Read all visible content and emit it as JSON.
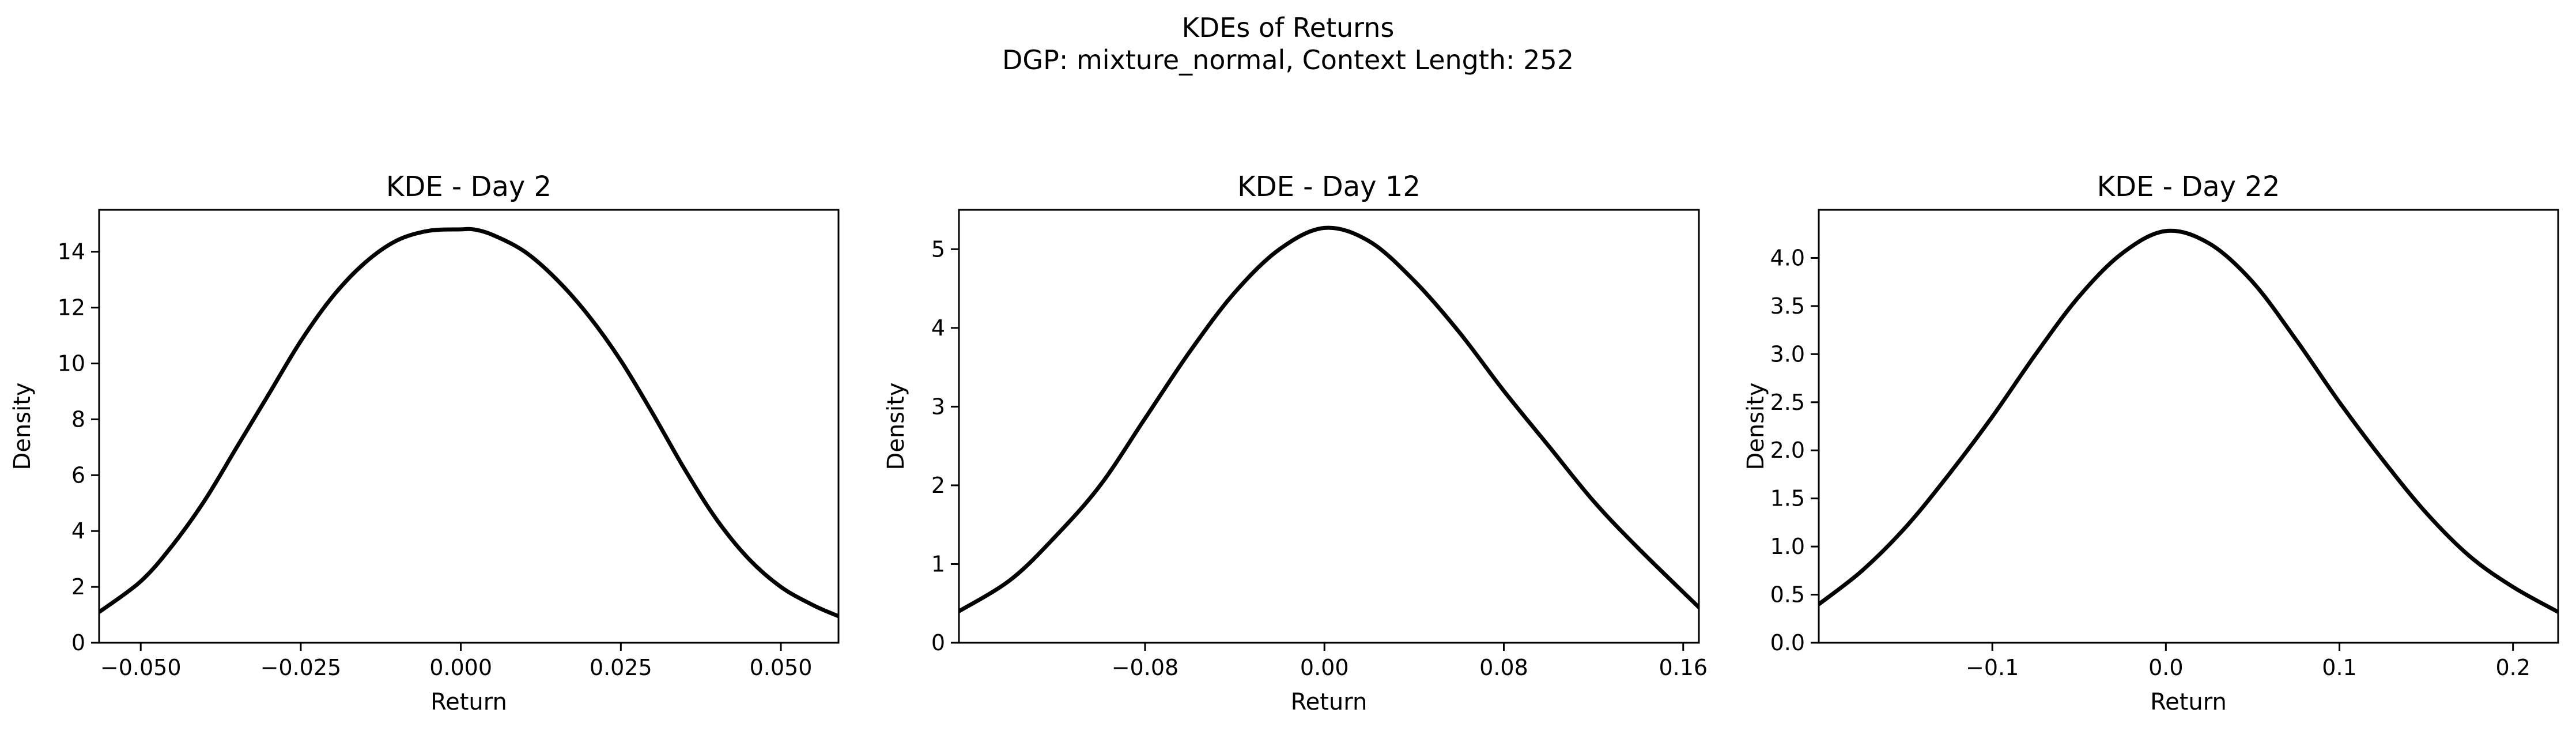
{
  "figure": {
    "title_line1": "KDEs of Returns",
    "title_line2": "DGP: mixture_normal, Context Length: 252"
  },
  "chart_data": [
    {
      "type": "line",
      "title": "KDE - Day 2",
      "xlabel": "Return",
      "ylabel": "Density",
      "xlim": [
        -0.0565,
        0.059
      ],
      "ylim": [
        0,
        15.5
      ],
      "xticks": [
        -0.05,
        -0.025,
        0.0,
        0.025,
        0.05
      ],
      "xtick_labels": [
        "−0.050",
        "−0.025",
        "0.000",
        "0.025",
        "0.050"
      ],
      "yticks": [
        0,
        2,
        4,
        6,
        8,
        10,
        12,
        14
      ],
      "ytick_labels": [
        "0",
        "2",
        "4",
        "6",
        "8",
        "10",
        "12",
        "14"
      ],
      "grid": false,
      "series": [
        {
          "color": "#000000",
          "x": [
            -0.0565,
            -0.05,
            -0.045,
            -0.04,
            -0.035,
            -0.03,
            -0.025,
            -0.02,
            -0.015,
            -0.01,
            -0.005,
            0.0,
            0.002,
            0.005,
            0.01,
            0.015,
            0.02,
            0.025,
            0.03,
            0.035,
            0.04,
            0.045,
            0.05,
            0.055,
            0.059
          ],
          "y": [
            1.1,
            2.2,
            3.5,
            5.1,
            7.0,
            8.9,
            10.8,
            12.4,
            13.6,
            14.4,
            14.75,
            14.8,
            14.8,
            14.6,
            14.0,
            13.0,
            11.7,
            10.1,
            8.2,
            6.2,
            4.4,
            3.0,
            2.0,
            1.35,
            0.95
          ]
        }
      ]
    },
    {
      "type": "line",
      "title": "KDE - Day 12",
      "xlabel": "Return",
      "ylabel": "Density",
      "xlim": [
        -0.163,
        0.167
      ],
      "ylim": [
        0,
        5.5
      ],
      "xticks": [
        -0.08,
        0.0,
        0.08,
        0.16
      ],
      "xtick_labels": [
        "−0.08",
        "0.00",
        "0.08",
        "0.16"
      ],
      "yticks": [
        0,
        1,
        2,
        3,
        4,
        5
      ],
      "ytick_labels": [
        "0",
        "1",
        "2",
        "3",
        "4",
        "5"
      ],
      "grid": false,
      "series": [
        {
          "color": "#000000",
          "x": [
            -0.163,
            -0.14,
            -0.12,
            -0.1,
            -0.08,
            -0.06,
            -0.04,
            -0.02,
            0.0,
            0.02,
            0.04,
            0.06,
            0.08,
            0.1,
            0.12,
            0.14,
            0.167
          ],
          "y": [
            0.4,
            0.8,
            1.35,
            2.0,
            2.85,
            3.7,
            4.45,
            5.0,
            5.27,
            5.1,
            4.6,
            3.95,
            3.2,
            2.5,
            1.8,
            1.2,
            0.45
          ]
        }
      ]
    },
    {
      "type": "line",
      "title": "KDE - Day 22",
      "xlabel": "Return",
      "ylabel": "Density",
      "xlim": [
        -0.2,
        0.226
      ],
      "ylim": [
        0,
        4.5
      ],
      "xticks": [
        -0.1,
        0.0,
        0.1,
        0.2
      ],
      "xtick_labels": [
        "−0.1",
        "0.0",
        "0.1",
        "0.2"
      ],
      "yticks": [
        0,
        0.5,
        1,
        1.5,
        2,
        2.5,
        3,
        3.5,
        4
      ],
      "ytick_labels": [
        "0.0",
        "0.5",
        "1.0",
        "1.5",
        "2.0",
        "2.5",
        "3.0",
        "3.5",
        "4.0"
      ],
      "grid": false,
      "series": [
        {
          "color": "#000000",
          "x": [
            -0.2,
            -0.175,
            -0.15,
            -0.125,
            -0.1,
            -0.075,
            -0.05,
            -0.025,
            0.0,
            0.025,
            0.05,
            0.075,
            0.1,
            0.125,
            0.15,
            0.175,
            0.2,
            0.226
          ],
          "y": [
            0.4,
            0.75,
            1.2,
            1.75,
            2.35,
            3.0,
            3.6,
            4.05,
            4.28,
            4.15,
            3.75,
            3.15,
            2.5,
            1.9,
            1.35,
            0.9,
            0.58,
            0.32
          ]
        }
      ]
    }
  ]
}
